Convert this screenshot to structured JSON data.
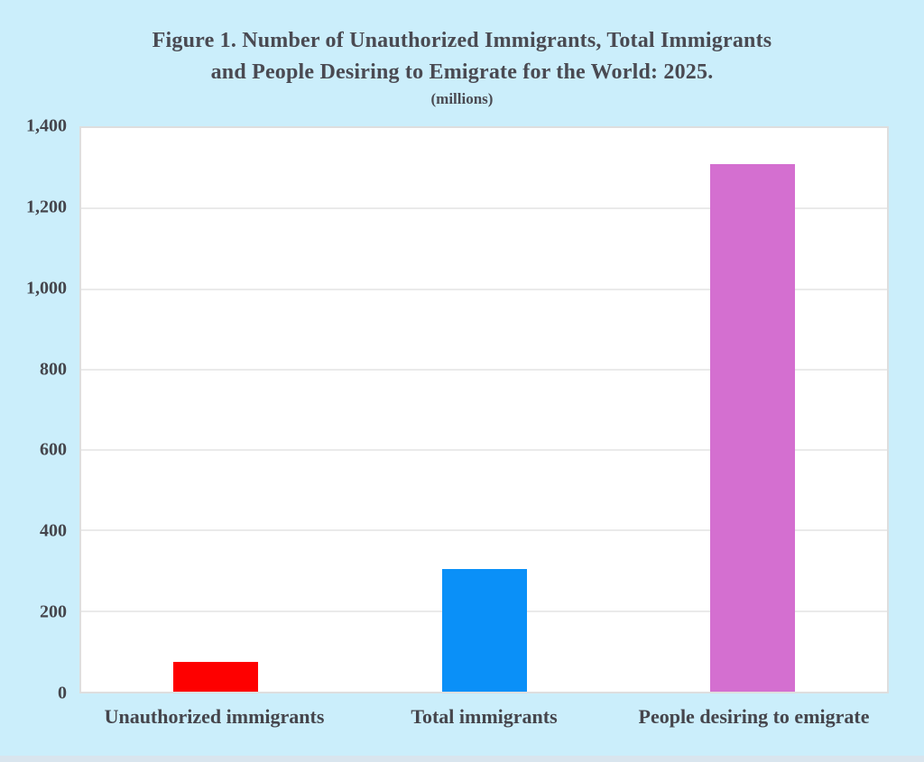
{
  "figure": {
    "title_line1": "Figure 1. Number of Unauthorized Immigrants, Total Immigrants",
    "title_line2": "and People Desiring to Emigrate for the World: 2025.",
    "units_note": "(millions)"
  },
  "colors": {
    "canvas_background": "#cbeefb",
    "plot_background": "#ffffff",
    "gridline": "#eaeaea",
    "text": "#4a4a52",
    "bar_red": "#fe0000",
    "bar_blue": "#0a90f8",
    "bar_orchid": "#d46fd0"
  },
  "chart_data": {
    "type": "bar",
    "title": "Figure 1. Number of Unauthorized Immigrants, Total Immigrants and People Desiring to Emigrate for the World: 2025.",
    "subtitle": "(millions)",
    "categories": [
      "Unauthorized immigrants",
      "Total immigrants",
      "People desiring to emigrate"
    ],
    "values": [
      75,
      305,
      1310
    ],
    "bar_colors": [
      "#fe0000",
      "#0a90f8",
      "#d46fd0"
    ],
    "xlabel": "",
    "ylabel": "",
    "ylim": [
      0,
      1400
    ],
    "yticks": [
      0,
      200,
      400,
      600,
      800,
      1000,
      1200,
      1400
    ],
    "ytick_labels": [
      "0",
      "200",
      "400",
      "600",
      "800",
      "1,000",
      "1,200",
      "1,400"
    ],
    "grid": "horizontal",
    "legend": "none"
  }
}
